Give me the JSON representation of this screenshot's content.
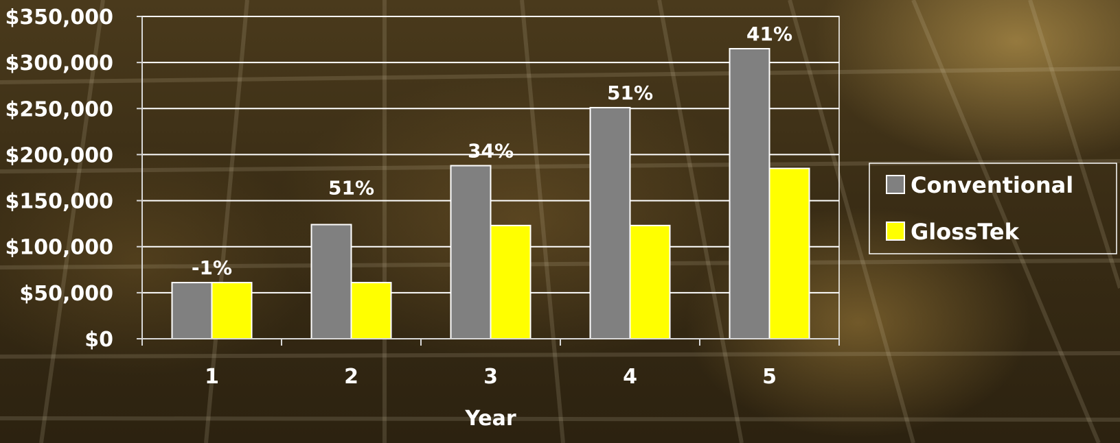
{
  "chart_data": {
    "type": "bar",
    "categories": [
      "1",
      "2",
      "3",
      "4",
      "5"
    ],
    "series": [
      {
        "name": "Conventional",
        "color": "#808080",
        "values": [
          61000,
          124000,
          188000,
          251000,
          315000
        ]
      },
      {
        "name": "GlossTek",
        "color": "#ffff00",
        "values": [
          61000,
          61000,
          123000,
          123000,
          185000
        ]
      }
    ],
    "data_labels": [
      "-1%",
      "51%",
      "34%",
      "51%",
      "41%"
    ],
    "xlabel": "Year",
    "ylabel": "",
    "ylim": [
      0,
      350000
    ],
    "y_ticks": [
      "$0",
      "$50,000",
      "$100,000",
      "$150,000",
      "$200,000",
      "$250,000",
      "$300,000",
      "$350,000"
    ],
    "grid": true,
    "legend_position": "right"
  }
}
